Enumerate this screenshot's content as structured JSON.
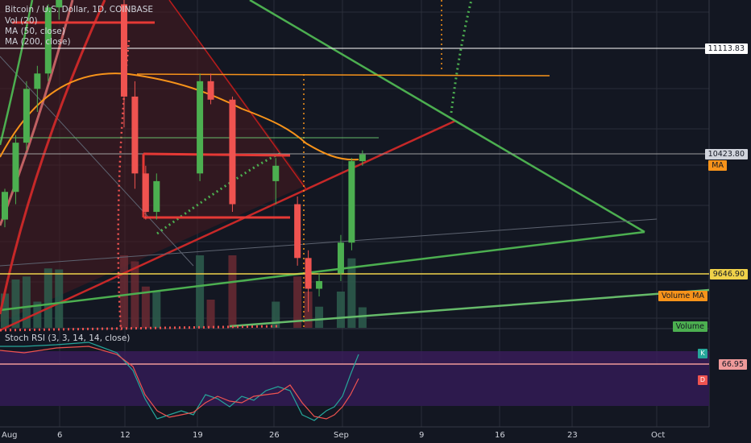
{
  "legend": {
    "title": "Bitcoin / U.S. Dollar, 1D, COINBASE",
    "vol": "Vol (20)",
    "ma50": "MA (50, close)",
    "ma200": "MA (200, close)",
    "rsi": "Stoch RSI (3, 3, 14, 14, close)"
  },
  "price_tags": {
    "level_high": "11113.83",
    "last_price": "10423.80",
    "ma_tag": "MA",
    "level_low": "9646.90",
    "volume_ma": "Volume MA",
    "volume": "Volume",
    "rsi_value": "66.95",
    "rsi_k": "K",
    "rsi_d": "D"
  },
  "colors": {
    "background": "#131722",
    "up": "#4caf50",
    "down": "#ef5350",
    "ma50": "#f7931a",
    "rsi_band": "#2d1a4d",
    "rsi_k": "#26a69a",
    "rsi_d": "#ef5350"
  },
  "chart_data": {
    "type": "candlestick",
    "symbol": "Bitcoin / U.S. Dollar",
    "interval": "1D",
    "exchange": "COINBASE",
    "x_ticks": [
      "Aug",
      "6",
      "12",
      "19",
      "26",
      "Sep",
      "9",
      "16",
      "23",
      "Oct"
    ],
    "y_ticks": [
      9646.9,
      10423.8,
      11113.83
    ],
    "candles": [
      {
        "date": "Aug 1",
        "o": 10000,
        "h": 10200,
        "l": 9950,
        "c": 10180
      },
      {
        "date": "Aug 2",
        "o": 10180,
        "h": 10550,
        "l": 10100,
        "c": 10500
      },
      {
        "date": "Aug 3",
        "o": 10500,
        "h": 10900,
        "l": 10450,
        "c": 10850
      },
      {
        "date": "Aug 4",
        "o": 10850,
        "h": 11000,
        "l": 10700,
        "c": 10950
      },
      {
        "date": "Aug 5",
        "o": 10950,
        "h": 11400,
        "l": 10900,
        "c": 11380
      },
      {
        "date": "Aug 6",
        "o": 11380,
        "h": 11900,
        "l": 11300,
        "c": 11800
      },
      {
        "date": "Aug 12",
        "o": 11400,
        "h": 11700,
        "l": 10600,
        "c": 10800
      },
      {
        "date": "Aug 13",
        "o": 10800,
        "h": 10900,
        "l": 10200,
        "c": 10300
      },
      {
        "date": "Aug 14",
        "o": 10300,
        "h": 10350,
        "l": 10000,
        "c": 10050
      },
      {
        "date": "Aug 15",
        "o": 10050,
        "h": 10300,
        "l": 10000,
        "c": 10250
      },
      {
        "date": "Aug 19",
        "o": 10300,
        "h": 10950,
        "l": 10250,
        "c": 10900
      },
      {
        "date": "Aug 20",
        "o": 10900,
        "h": 10950,
        "l": 10750,
        "c": 10780
      },
      {
        "date": "Aug 22",
        "o": 10780,
        "h": 10800,
        "l": 10050,
        "c": 10100
      },
      {
        "date": "Aug 26",
        "o": 10250,
        "h": 10400,
        "l": 10100,
        "c": 10350
      },
      {
        "date": "Aug 28",
        "o": 10100,
        "h": 10150,
        "l": 9700,
        "c": 9750
      },
      {
        "date": "Aug 29",
        "o": 9750,
        "h": 9800,
        "l": 9400,
        "c": 9550
      },
      {
        "date": "Aug 30",
        "o": 9550,
        "h": 9650,
        "l": 9500,
        "c": 9600
      },
      {
        "date": "Sep 1",
        "o": 9650,
        "h": 9900,
        "l": 9600,
        "c": 9850
      },
      {
        "date": "Sep 2",
        "o": 9850,
        "h": 10400,
        "l": 9800,
        "c": 10380
      },
      {
        "date": "Sep 3",
        "o": 10380,
        "h": 10450,
        "l": 10350,
        "c": 10423.8
      }
    ],
    "horizontal_levels": [
      11113.83,
      10423.8,
      9646.9
    ],
    "ma_series": "MA (50, close)",
    "stoch_rsi": {
      "k_last": 66.95
    }
  }
}
